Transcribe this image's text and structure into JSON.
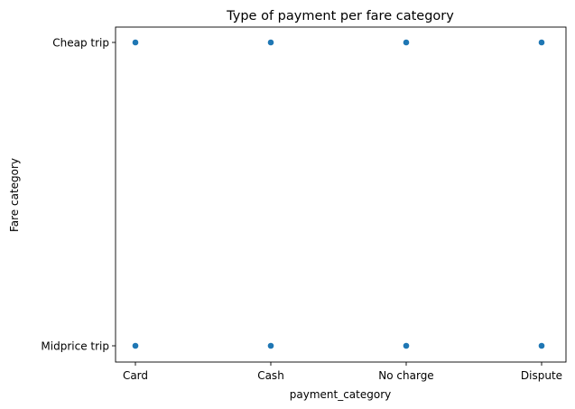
{
  "chart_data": {
    "type": "scatter",
    "title": "Type of payment per fare category",
    "xlabel": "payment_category",
    "ylabel": "Fare category",
    "x_categories": [
      "Card",
      "Cash",
      "No charge",
      "Dispute"
    ],
    "y_categories": [
      "Midprice trip",
      "Cheap trip"
    ],
    "points": [
      {
        "x": "Card",
        "y": "Cheap trip"
      },
      {
        "x": "Cash",
        "y": "Cheap trip"
      },
      {
        "x": "No charge",
        "y": "Cheap trip"
      },
      {
        "x": "Dispute",
        "y": "Cheap trip"
      },
      {
        "x": "Card",
        "y": "Midprice trip"
      },
      {
        "x": "Cash",
        "y": "Midprice trip"
      },
      {
        "x": "No charge",
        "y": "Midprice trip"
      },
      {
        "x": "Dispute",
        "y": "Midprice trip"
      }
    ],
    "marker_color": "#1f77b4",
    "grid": false,
    "legend": false
  }
}
